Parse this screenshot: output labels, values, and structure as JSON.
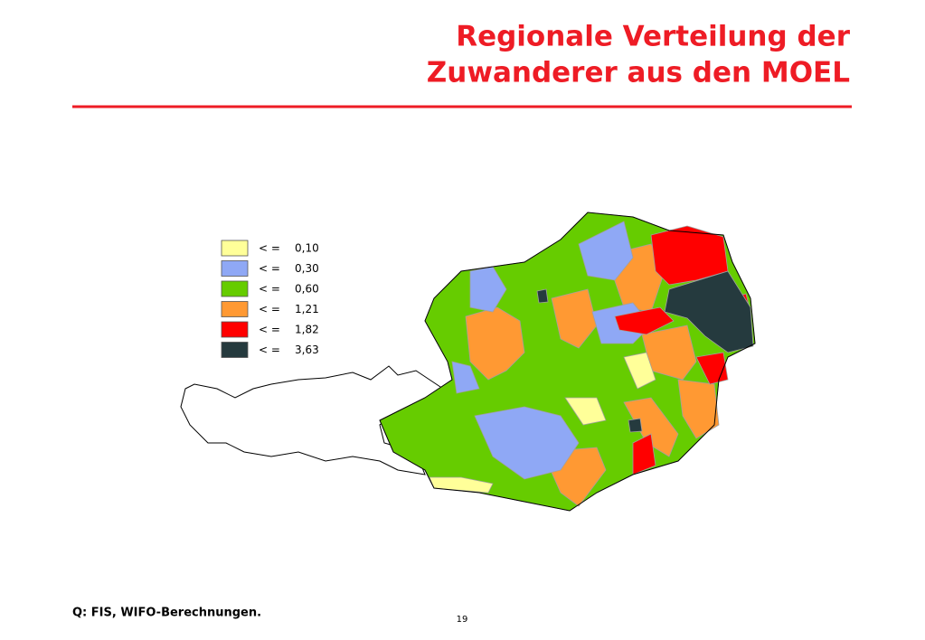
{
  "header": {
    "title_lines": [
      "Regionale Verteilung der",
      "Zuwanderer aus den MOEL"
    ]
  },
  "legend": {
    "items": [
      {
        "operator": "< =",
        "label": "0,10",
        "color": "#ffff99"
      },
      {
        "operator": "< =",
        "label": "0,30",
        "color": "#8fa8f5"
      },
      {
        "operator": "< =",
        "label": "0,60",
        "color": "#66cc00"
      },
      {
        "operator": "< =",
        "label": "1,21",
        "color": "#ff9933"
      },
      {
        "operator": "< =",
        "label": "1,82",
        "color": "#ff0000"
      },
      {
        "operator": "< =",
        "label": "3,63",
        "color": "#253a3e"
      }
    ]
  },
  "footer": {
    "source": "Q: FIS, WIFO-Berechnungen.",
    "page": "19"
  }
}
